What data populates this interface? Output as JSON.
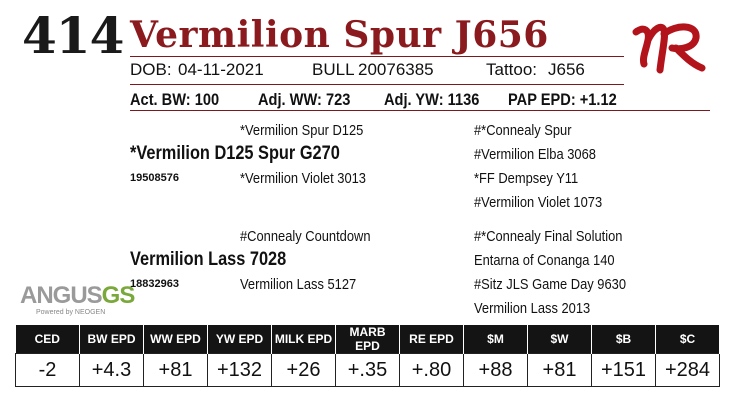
{
  "header": {
    "lot_number": "414",
    "animal_name": "Vermilion Spur J656",
    "dob_label": "DOB:",
    "dob": "04-11-2021",
    "sex": "BULL",
    "reg_number": "20076385",
    "tattoo_label": "Tattoo:",
    "tattoo": "J656",
    "logo_text": "VR"
  },
  "performance": {
    "act_bw": "Act. BW: 100",
    "adj_ww": "Adj. WW: 723",
    "adj_yw": "Adj. YW: 1136",
    "pap_epd": "PAP EPD: +1.12"
  },
  "pedigree": {
    "sire": "*Vermilion D125 Spur G270",
    "sire_reg": "19508576",
    "sire_sire": "*Vermilion Spur D125",
    "sire_dam": "*Vermilion Violet 3013",
    "sss": "#*Connealy Spur",
    "ssd": "#Vermilion Elba 3068",
    "sds": "*FF Dempsey Y11",
    "sdd": "#Vermilion Violet 1073",
    "dam": "Vermilion Lass 7028",
    "dam_reg": "18832963",
    "dam_sire": "#Connealy Countdown",
    "dam_dam": "Vermilion Lass 5127",
    "dss": "#*Connealy Final Solution",
    "dsd": "Entarna of Conanga 140",
    "dds": "#Sitz JLS Game Day 9630",
    "ddd": "Vermilion Lass 2013"
  },
  "badge": {
    "brand_main": "ANGUS",
    "brand_gs": "GS",
    "powered_by": "Powered by NEOGEN"
  },
  "epd": {
    "headers": [
      "CED",
      "BW EPD",
      "WW EPD",
      "YW EPD",
      "MILK EPD",
      "MARB EPD",
      "RE EPD",
      "$M",
      "$W",
      "$B",
      "$C"
    ],
    "values": [
      "-2",
      "+4.3",
      "+81",
      "+132",
      "+26",
      "+.35",
      "+.80",
      "+88",
      "+81",
      "+151",
      "+284"
    ]
  },
  "colors": {
    "accent": "#8b1a1e",
    "header_bg": "#141414"
  }
}
